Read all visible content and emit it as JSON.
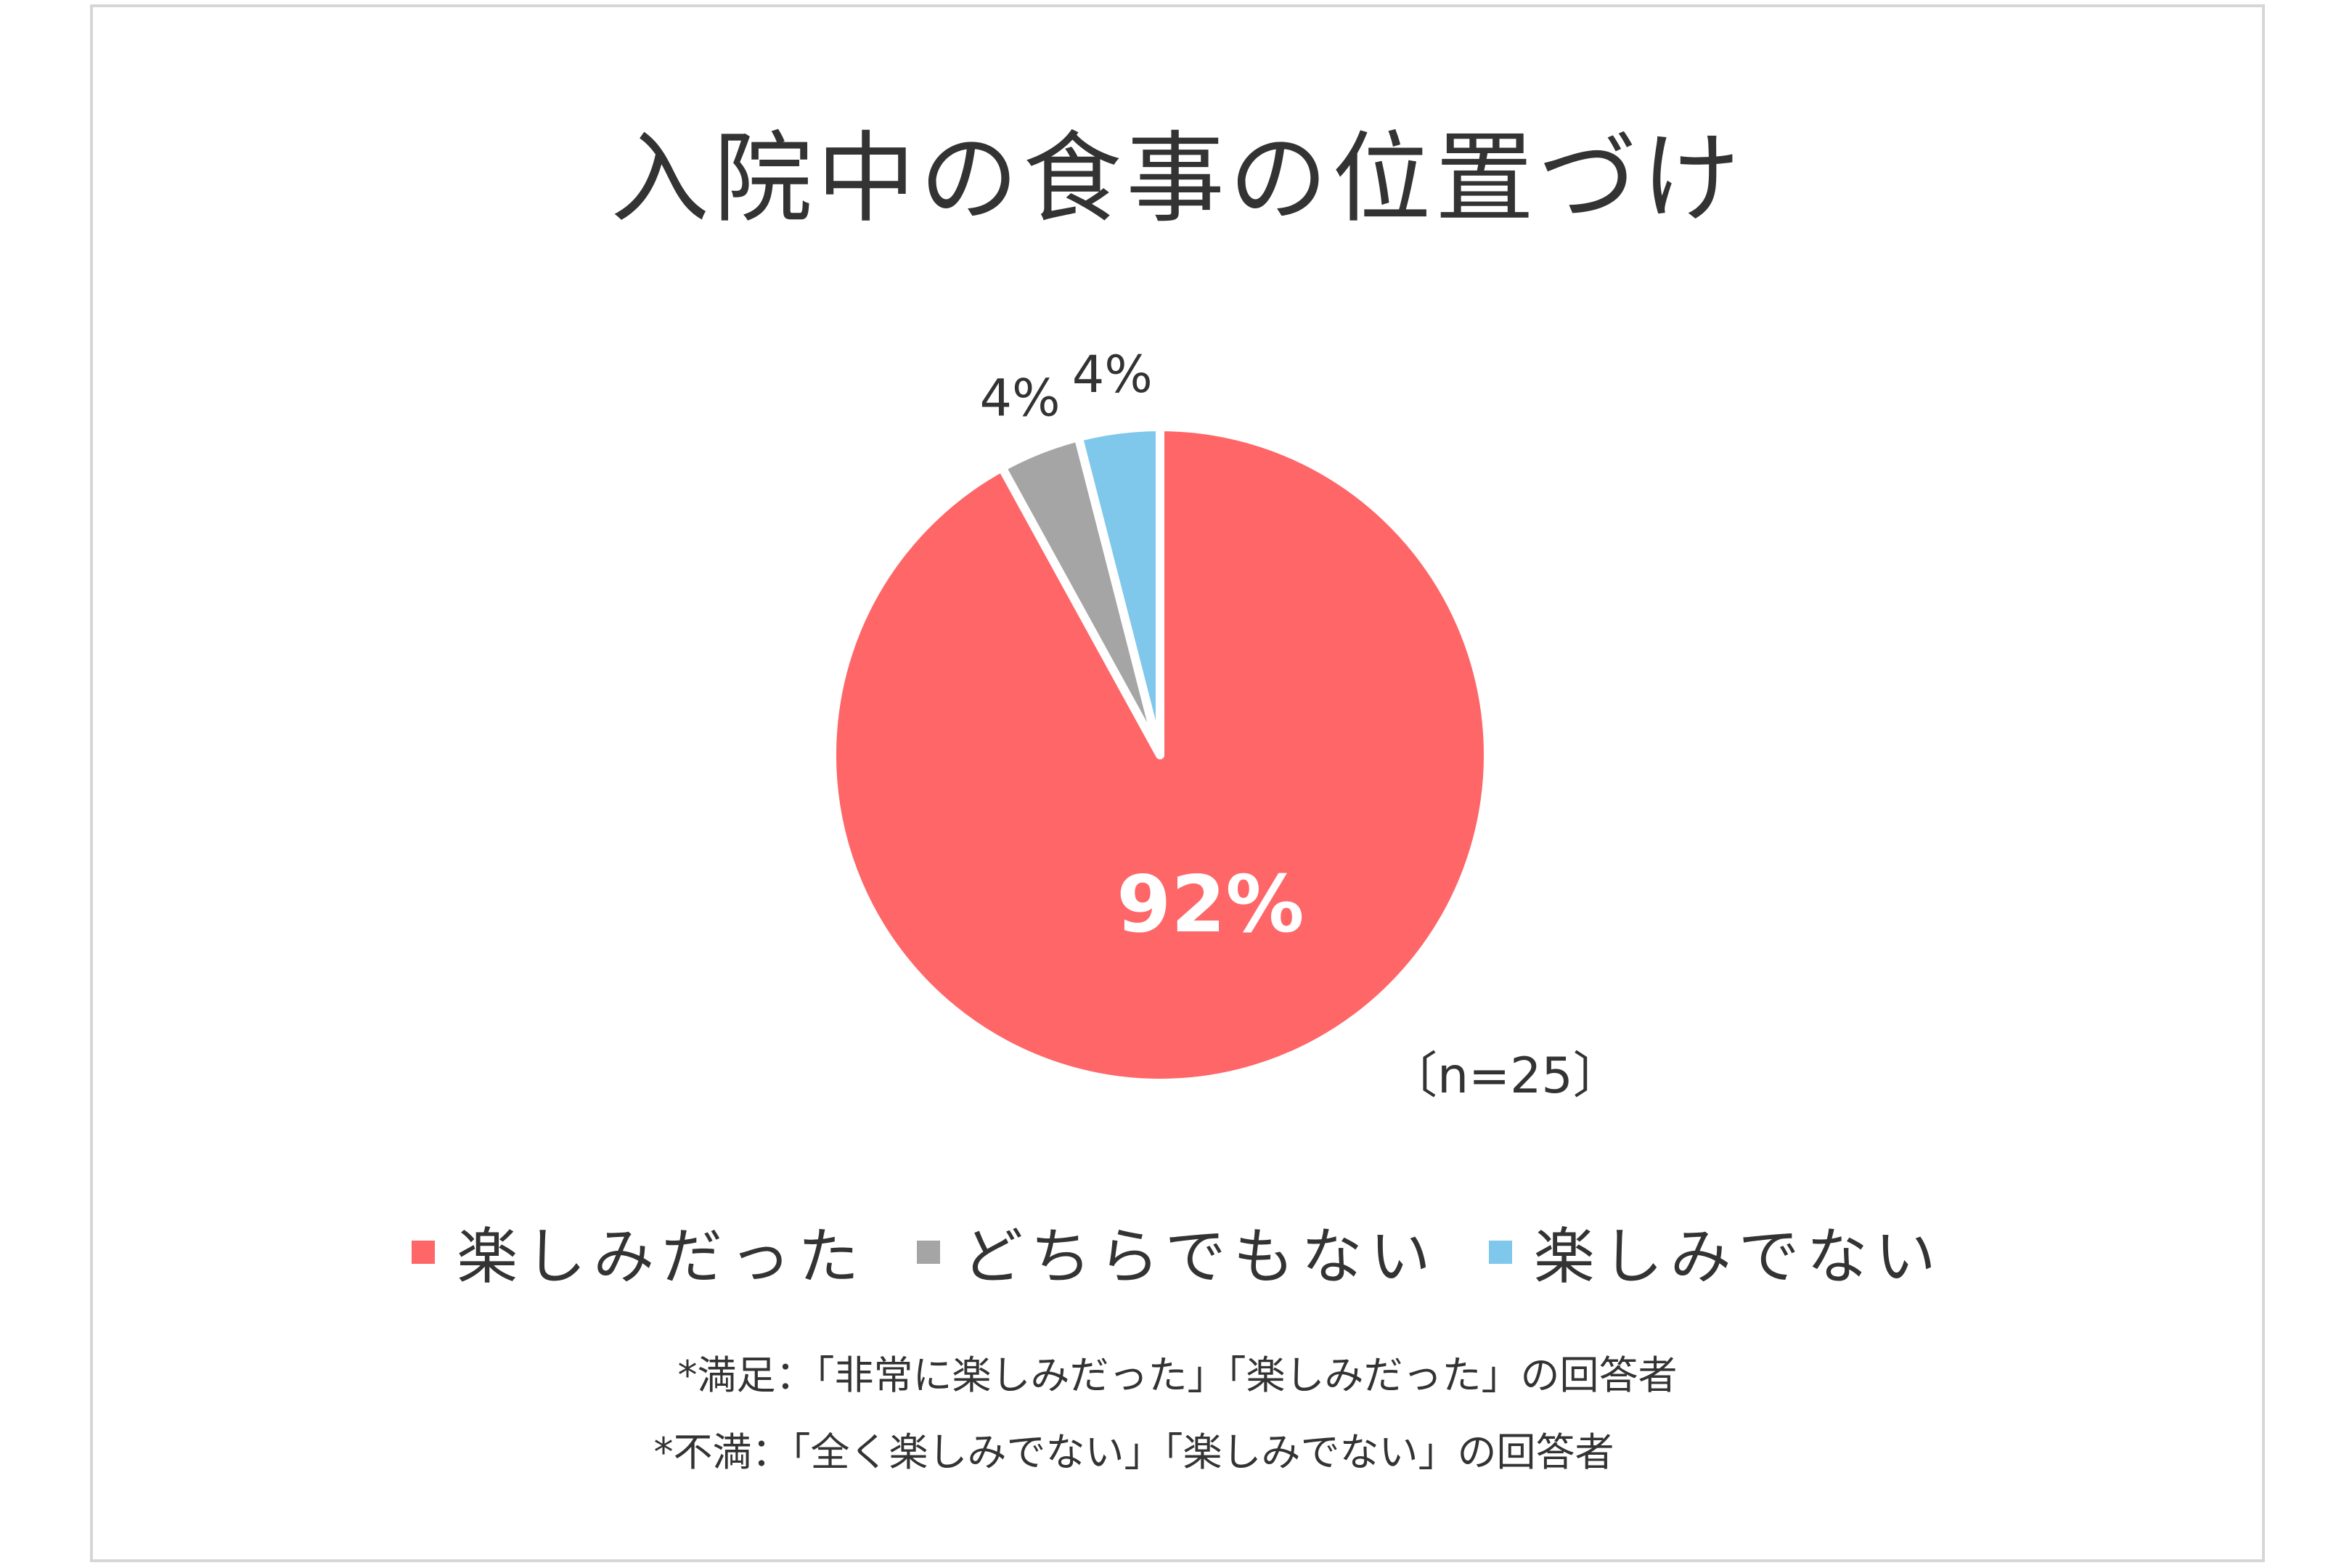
{
  "chart_data": {
    "type": "pie",
    "title": "入院中の食事の位置づけ",
    "categories": [
      "楽しみだった",
      "どちらでもない",
      "楽しみでない"
    ],
    "values": [
      92,
      4,
      4
    ],
    "value_labels": [
      "92%",
      "4%",
      "4%"
    ],
    "colors": [
      "#fe6668",
      "#a5a5a5",
      "#7fc7eb"
    ],
    "legend_placement": "bottom",
    "start_angle_deg": 0,
    "direction": "counterclockwise",
    "annotation": "〔n=25〕"
  },
  "footnotes": [
    "*満足：「非常に楽しみだった」「楽しみだった」の回答者",
    "*不満：「全く楽しみでない」「楽しみでない」の回答者"
  ]
}
